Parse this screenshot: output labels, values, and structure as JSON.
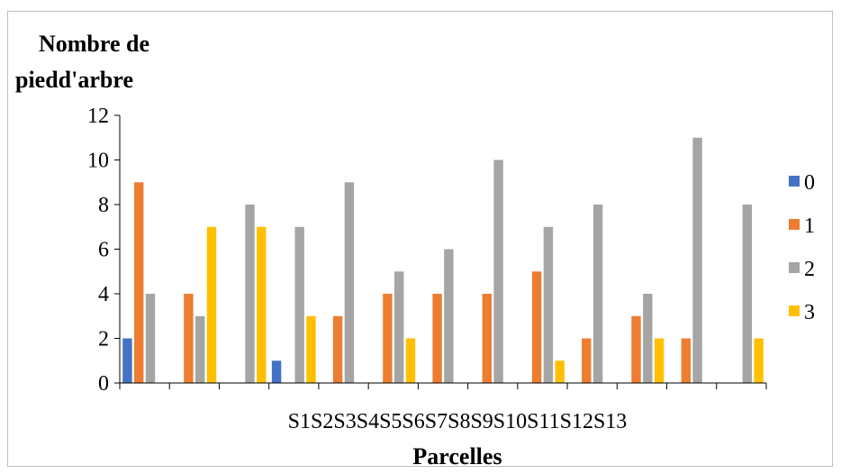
{
  "chart_data": {
    "type": "bar",
    "ylabel": "Nombre de piedd'arbre",
    "ylabel_lines": [
      "Nombre de",
      "piedd'arbre"
    ],
    "xlabel": "Parcelles",
    "x_tick_text": "S1S2S3S4S5S6S7S8S9S10S11S12S13",
    "ylim": [
      0,
      12
    ],
    "yticks": [
      0,
      2,
      4,
      6,
      8,
      10,
      12
    ],
    "grid": false,
    "legend_position": "right",
    "num_groups": 13,
    "series": [
      {
        "name": "0",
        "color": "#4472C4",
        "values": [
          2,
          0,
          0,
          1,
          0,
          0,
          0,
          0,
          0,
          0,
          0,
          0,
          0
        ]
      },
      {
        "name": "1",
        "color": "#ED7D31",
        "values": [
          9,
          4,
          0,
          0,
          3,
          4,
          4,
          4,
          5,
          2,
          3,
          2,
          0
        ]
      },
      {
        "name": "2",
        "color": "#A5A5A5",
        "values": [
          4,
          3,
          8,
          7,
          9,
          5,
          6,
          10,
          7,
          8,
          4,
          11,
          8
        ]
      },
      {
        "name": "3",
        "color": "#FFC000",
        "values": [
          0,
          7,
          7,
          3,
          0,
          2,
          0,
          0,
          1,
          0,
          2,
          0,
          2
        ]
      }
    ]
  }
}
